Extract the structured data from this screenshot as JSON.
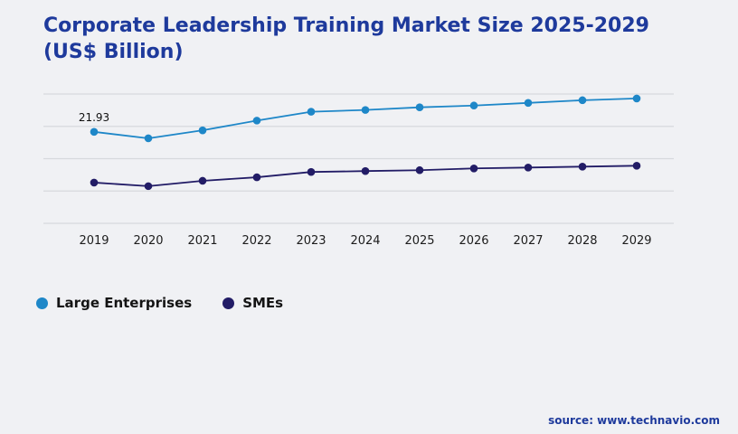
{
  "title": {
    "line1": "Corporate Leadership Training Market Size 2025-2029",
    "line2": "(US$ Billion)"
  },
  "colors": {
    "title": "#1e3a9c",
    "source": "#1e3a9c",
    "background": "#f0f1f4",
    "gridline": "#d7d9dd"
  },
  "footer": {
    "source": "source: www.technavio.com"
  },
  "chart_data": {
    "type": "line",
    "title": "Corporate Leadership Training Market Size 2025-2029 (US$ Billion)",
    "categories": [
      "2019",
      "2020",
      "2021",
      "2022",
      "2023",
      "2024",
      "2025",
      "2026",
      "2027",
      "2028",
      "2029"
    ],
    "series": [
      {
        "id": "large-enterprises",
        "name": "Large Enterprises",
        "color": "#1e87c8",
        "values": [
          21.93,
          21.2,
          22.1,
          23.2,
          24.2,
          24.4,
          24.7,
          24.9,
          25.2,
          25.5,
          25.7
        ]
      },
      {
        "id": "smes",
        "name": "SMEs",
        "color": "#221c66",
        "values": [
          16.2,
          15.8,
          16.4,
          16.8,
          17.4,
          17.5,
          17.6,
          17.8,
          17.9,
          18.0,
          18.1
        ]
      }
    ],
    "annotations": [
      {
        "series": "Large Enterprises",
        "category": "2019",
        "text": "21.93"
      }
    ],
    "ylim": [
      11.6,
      26.2
    ],
    "grid": true,
    "gridline_count": 5,
    "legend_position": "bottom-left",
    "xlabel": "",
    "ylabel": ""
  }
}
